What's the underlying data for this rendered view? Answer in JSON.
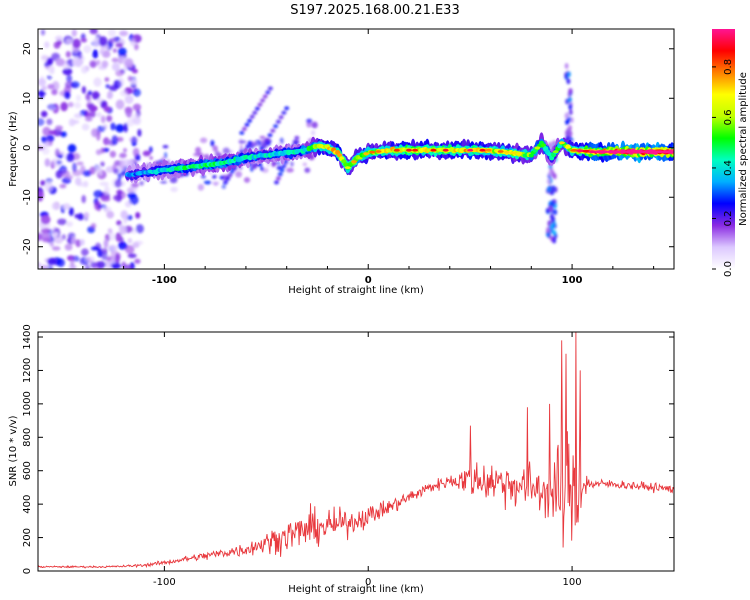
{
  "title": "S197.2025.168.00.21.E33",
  "chart_data": [
    {
      "type": "heatmap",
      "xlabel": "Height of straight line (km)",
      "ylabel": "Frequency (Hz)",
      "xlim": [
        -162,
        150
      ],
      "ylim": [
        -24.5,
        24
      ],
      "xticks": [
        -100,
        0,
        100
      ],
      "yticks": [
        -20,
        -10,
        0,
        10,
        20
      ],
      "colorbar": {
        "label": "Normalized spectral amplitude",
        "range": [
          0,
          0.95
        ],
        "ticks": [
          0.0,
          0.2,
          0.4,
          0.6,
          0.8
        ],
        "tick_labels": [
          "0.0",
          "0.2",
          "0.4",
          "0.6",
          "0.8"
        ],
        "colormap": [
          "#ffffff",
          "#dcc8ff",
          "#8a2be2",
          "#0000ff",
          "#00b0ff",
          "#00ffc0",
          "#00ff00",
          "#c0ff00",
          "#ffff00",
          "#ff8000",
          "#ff0000",
          "#ff1493"
        ]
      },
      "ridge": {
        "x": [
          -118,
          -110,
          -100,
          -90,
          -80,
          -70,
          -60,
          -50,
          -40,
          -30,
          -25,
          -20,
          -15,
          -10,
          -5,
          0,
          10,
          20,
          30,
          40,
          50,
          60,
          70,
          80,
          85,
          90,
          95,
          100,
          110,
          120,
          130,
          140,
          150
        ],
        "y": [
          -5.5,
          -5,
          -4.5,
          -4,
          -3.5,
          -3,
          -2,
          -1.5,
          -1,
          -0.5,
          0.5,
          0,
          -1,
          -4,
          -2,
          -1,
          -0.5,
          -0.5,
          -0.5,
          -0.5,
          -0.5,
          -0.5,
          -1,
          -1.5,
          1,
          -2,
          1,
          -0.5,
          -0.8,
          -0.8,
          -0.8,
          -0.8,
          -0.8
        ],
        "amplitude": [
          0.3,
          0.35,
          0.4,
          0.45,
          0.45,
          0.45,
          0.4,
          0.4,
          0.4,
          0.45,
          0.6,
          0.65,
          0.7,
          0.55,
          0.6,
          0.6,
          0.65,
          0.7,
          0.65,
          0.65,
          0.7,
          0.65,
          0.6,
          0.55,
          0.5,
          0.4,
          0.5,
          0.65,
          0.8,
          0.85,
          0.9,
          0.9,
          0.9
        ]
      }
    },
    {
      "type": "line",
      "xlabel": "Height of straight line (km)",
      "ylabel": "SNR (10 * v/v)",
      "xlim": [
        -162,
        150
      ],
      "ylim": [
        0,
        1430
      ],
      "xticks": [
        -100,
        0,
        100
      ],
      "yticks": [
        0,
        200,
        400,
        600,
        800,
        1000,
        1200,
        1400
      ],
      "color": "#e8383d",
      "envelope": {
        "x": [
          -162,
          -150,
          -130,
          -120,
          -110,
          -100,
          -90,
          -80,
          -70,
          -60,
          -50,
          -40,
          -30,
          -20,
          -10,
          0,
          10,
          20,
          30,
          40,
          50,
          60,
          70,
          80,
          90,
          95,
          98,
          100,
          102,
          105,
          110,
          120,
          130,
          140,
          150
        ],
        "mean": [
          25,
          25,
          25,
          28,
          35,
          50,
          70,
          90,
          110,
          130,
          170,
          210,
          250,
          270,
          290,
          330,
          380,
          440,
          500,
          540,
          550,
          540,
          520,
          500,
          480,
          450,
          450,
          450,
          500,
          520,
          520,
          520,
          510,
          500,
          490
        ],
        "amp": [
          10,
          10,
          10,
          12,
          18,
          25,
          35,
          50,
          60,
          80,
          120,
          180,
          220,
          180,
          150,
          120,
          90,
          80,
          70,
          70,
          200,
          250,
          250,
          280,
          350,
          600,
          800,
          400,
          900,
          200,
          60,
          50,
          50,
          50,
          50
        ]
      },
      "spikes": [
        {
          "x": 78,
          "y": 980
        },
        {
          "x": 89,
          "y": 1000
        },
        {
          "x": 95,
          "y": 1380
        },
        {
          "x": 97,
          "y": 1300
        },
        {
          "x": 102,
          "y": 1430
        },
        {
          "x": 104,
          "y": 1200
        },
        {
          "x": 50,
          "y": 870
        }
      ]
    }
  ]
}
